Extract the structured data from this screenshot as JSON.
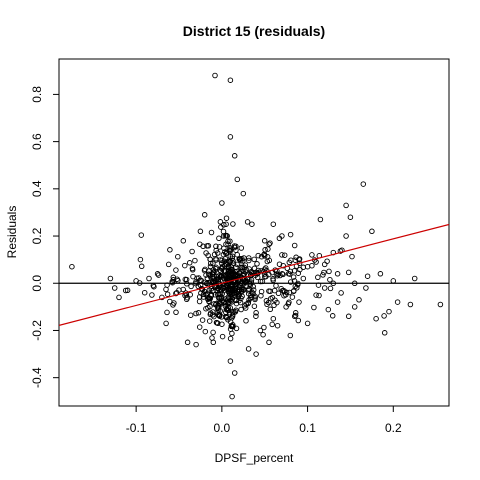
{
  "chart_data": {
    "type": "scatter",
    "title": "District 15 (residuals)",
    "xlabel": "DPSF_percent",
    "ylabel": "Residuals",
    "xlim": [
      -0.19,
      0.265
    ],
    "ylim": [
      -0.52,
      0.95
    ],
    "xticks": [
      -0.1,
      0.0,
      0.1,
      0.2
    ],
    "xtick_labels": [
      "-0.1",
      "0.0",
      "0.1",
      "0.2"
    ],
    "yticks": [
      -0.4,
      -0.2,
      0.0,
      0.2,
      0.4,
      0.6,
      0.8
    ],
    "ytick_labels": [
      "-0.4",
      "-0.2",
      "0.0",
      "0.2",
      "0.4",
      "0.6",
      "0.8"
    ],
    "grid": false,
    "legend": "none",
    "point_color": "#000000",
    "fit_line_color": "#cc0000",
    "hline_color": "#000000",
    "hline_y": 0,
    "fit_line": {
      "intercept": 0.0,
      "slope": 0.94
    },
    "outliers": [
      [
        -0.175,
        0.07
      ],
      [
        -0.13,
        0.02
      ],
      [
        -0.125,
        -0.02
      ],
      [
        -0.12,
        -0.06
      ],
      [
        -0.11,
        -0.03
      ],
      [
        -0.1,
        0.01
      ],
      [
        -0.095,
        0.1
      ],
      [
        -0.09,
        -0.04
      ],
      [
        -0.085,
        0.02
      ],
      [
        -0.08,
        -0.01
      ],
      [
        -0.075,
        0.04
      ],
      [
        -0.07,
        -0.06
      ],
      [
        -0.065,
        -0.17
      ],
      [
        -0.062,
        0.08
      ],
      [
        -0.045,
        0.18
      ],
      [
        -0.04,
        -0.25
      ],
      [
        -0.03,
        -0.26
      ],
      [
        -0.025,
        0.22
      ],
      [
        -0.02,
        0.29
      ],
      [
        -0.01,
        -0.25
      ],
      [
        0.0,
        0.34
      ],
      [
        0.002,
        0.2
      ],
      [
        0.005,
        0.25
      ],
      [
        0.01,
        -0.33
      ],
      [
        0.015,
        -0.38
      ],
      [
        0.012,
        -0.48
      ],
      [
        0.01,
        0.62
      ],
      [
        0.015,
        0.54
      ],
      [
        0.018,
        0.44
      ],
      [
        -0.008,
        0.88
      ],
      [
        0.01,
        0.86
      ],
      [
        0.025,
        0.38
      ],
      [
        0.03,
        0.26
      ],
      [
        0.035,
        0.25
      ],
      [
        0.04,
        -0.3
      ],
      [
        0.045,
        -0.2
      ],
      [
        0.05,
        0.18
      ],
      [
        0.055,
        -0.25
      ],
      [
        0.06,
        0.25
      ],
      [
        0.065,
        -0.18
      ],
      [
        0.07,
        0.12
      ],
      [
        0.075,
        -0.1
      ],
      [
        0.08,
        0.05
      ],
      [
        0.085,
        -0.14
      ],
      [
        0.09,
        0.1
      ],
      [
        0.095,
        0.02
      ],
      [
        0.1,
        -0.17
      ],
      [
        0.105,
        0.12
      ],
      [
        0.11,
        -0.05
      ],
      [
        0.115,
        0.27
      ],
      [
        0.12,
        -0.02
      ],
      [
        0.125,
        0.05
      ],
      [
        0.13,
        0.0
      ],
      [
        0.135,
        -0.08
      ],
      [
        0.14,
        0.14
      ],
      [
        0.145,
        0.33
      ],
      [
        0.148,
        -0.14
      ],
      [
        0.15,
        0.28
      ],
      [
        0.155,
        0.0
      ],
      [
        0.16,
        -0.07
      ],
      [
        0.165,
        0.42
      ],
      [
        0.168,
        -0.02
      ],
      [
        0.175,
        0.22
      ],
      [
        0.18,
        -0.15
      ],
      [
        0.19,
        -0.21
      ],
      [
        0.2,
        0.01
      ],
      [
        0.205,
        -0.08
      ],
      [
        0.22,
        -0.09
      ],
      [
        0.225,
        0.02
      ],
      [
        0.255,
        -0.09
      ],
      [
        0.145,
        0.2
      ],
      [
        0.13,
        0.13
      ],
      [
        0.12,
        0.08
      ],
      [
        0.185,
        0.04
      ],
      [
        0.195,
        -0.12
      ],
      [
        0.11,
        0.09
      ],
      [
        0.09,
        -0.08
      ],
      [
        0.17,
        0.03
      ],
      [
        0.155,
        -0.1
      ],
      [
        0.135,
        0.04
      ],
      [
        0.1,
        0.07
      ],
      [
        0.085,
        0.16
      ],
      [
        0.06,
        -0.15
      ],
      [
        0.07,
        0.2
      ]
    ],
    "clusters": [
      {
        "cx": 0.005,
        "cy": 0.0,
        "sx": 0.012,
        "sy": 0.09,
        "n": 260
      },
      {
        "cx": 0.02,
        "cy": 0.0,
        "sx": 0.03,
        "sy": 0.09,
        "n": 180
      },
      {
        "cx": 0.06,
        "cy": 0.02,
        "sx": 0.045,
        "sy": 0.07,
        "n": 110
      },
      {
        "cx": -0.03,
        "cy": -0.02,
        "sx": 0.03,
        "sy": 0.08,
        "n": 80
      }
    ],
    "seed": 15
  }
}
